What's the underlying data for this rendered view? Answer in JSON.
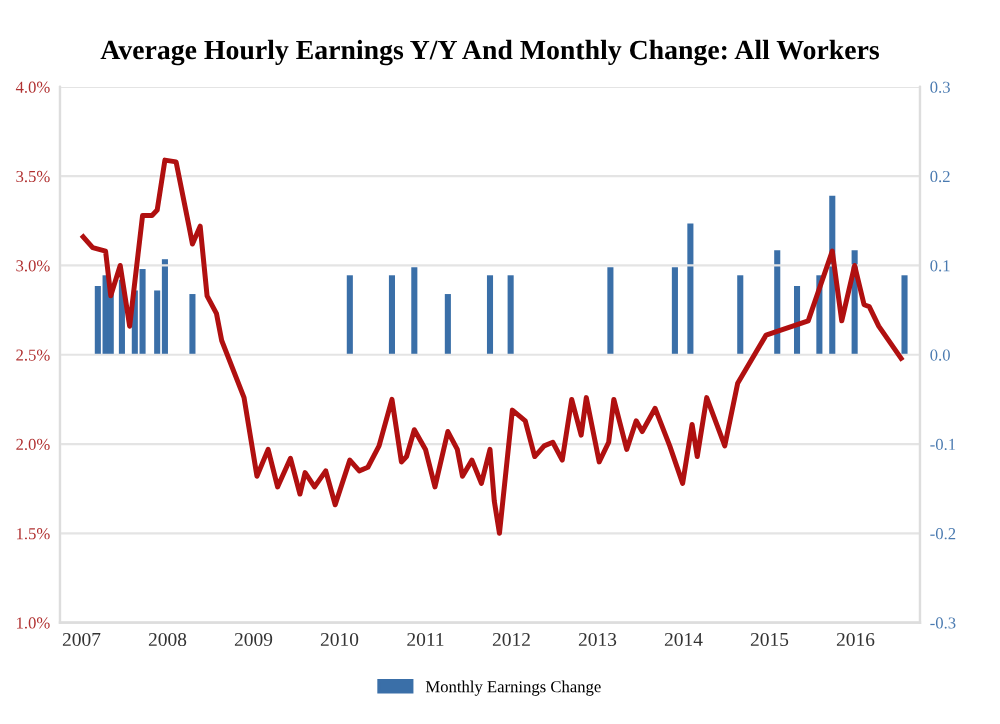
{
  "chart_data": {
    "type": "line",
    "title": "Average Hourly Earnings Y/Y And Monthly Change: All Workers",
    "xlim": [
      2006.75,
      2016.75
    ],
    "xticks": [
      2007,
      2008,
      2009,
      2010,
      2011,
      2012,
      2013,
      2014,
      2015,
      2016
    ],
    "ylim": [
      1.0,
      4.0
    ],
    "yticks": [
      {
        "value": 1.0,
        "label": "1.0%"
      },
      {
        "value": 1.5,
        "label": "1.5%"
      },
      {
        "value": 2.0,
        "label": "2.0%"
      },
      {
        "value": 2.5,
        "label": "2.5%"
      },
      {
        "value": 3.0,
        "label": "3.0%"
      },
      {
        "value": 3.5,
        "label": "3.5%"
      },
      {
        "value": 4.0,
        "label": "4.0%"
      }
    ],
    "y2lim": [
      -0.3,
      0.3
    ],
    "y2ticks": [
      -0.3,
      -0.2,
      -0.1,
      {
        "value": 0.0,
        "label": "0.0"
      },
      0.1,
      0.2,
      0.3
    ],
    "grid": "y",
    "legend": "bottom",
    "marker": "none",
    "line_style": "solid",
    "series": [
      {
        "name": "Monthly Earnings Change",
        "type": "bar",
        "axis": "y2",
        "color": "#3a6fa8",
        "x": [
          2007.19,
          2007.28,
          2007.34,
          2007.47,
          2007.62,
          2007.71,
          2007.88,
          2007.97,
          2008.29,
          2010.12,
          2010.61,
          2010.87,
          2011.26,
          2011.75,
          2011.99,
          2013.15,
          2013.9,
          2014.08,
          2014.66,
          2015.09,
          2015.32,
          2015.58,
          2015.73,
          2015.99,
          2016.57
        ],
        "values": [
          0.077,
          0.089,
          0.072,
          0.084,
          0.072,
          0.096,
          0.072,
          0.107,
          0.068,
          0.089,
          0.089,
          0.098,
          0.068,
          0.089,
          0.089,
          0.098,
          0.098,
          0.147,
          0.089,
          0.117,
          0.077,
          0.089,
          0.178,
          0.117,
          0.089
        ]
      },
      {
        "color": "#b01010",
        "x": [
          2007.02,
          2007.13,
          2007.28,
          2007.34,
          2007.45,
          2007.56,
          2007.71,
          2007.82,
          2007.88,
          2007.97,
          2008.1,
          2008.25,
          2008.29,
          2008.38,
          2008.46,
          2008.57,
          2008.63,
          2008.89,
          2009.04,
          2009.17,
          2009.28,
          2009.43,
          2009.54,
          2009.6,
          2009.71,
          2009.84,
          2009.95,
          2010.12,
          2010.23,
          2010.33,
          2010.46,
          2010.61,
          2010.72,
          2010.78,
          2010.87,
          2011.0,
          2011.11,
          2011.26,
          2011.37,
          2011.43,
          2011.54,
          2011.65,
          2011.75,
          2011.8,
          2011.86,
          2012.01,
          2012.16,
          2012.27,
          2012.38,
          2012.48,
          2012.59,
          2012.7,
          2012.81,
          2012.87,
          2013.02,
          2013.13,
          2013.19,
          2013.34,
          2013.45,
          2013.52,
          2013.67,
          2013.84,
          2013.99,
          2014.1,
          2014.16,
          2014.27,
          2014.48,
          2014.63,
          2014.96,
          2015.45,
          2015.73,
          2015.84,
          2015.99,
          2016.1,
          2016.16,
          2016.27,
          2016.53
        ],
        "values": [
          3.16,
          3.1,
          3.08,
          2.83,
          3.0,
          2.66,
          3.28,
          3.28,
          3.31,
          3.59,
          3.58,
          3.22,
          3.12,
          3.22,
          2.83,
          2.73,
          2.58,
          2.26,
          1.82,
          1.97,
          1.76,
          1.92,
          1.72,
          1.84,
          1.76,
          1.85,
          1.66,
          1.91,
          1.85,
          1.87,
          1.99,
          2.25,
          1.9,
          1.93,
          2.08,
          1.97,
          1.76,
          2.07,
          1.97,
          1.82,
          1.91,
          1.78,
          1.97,
          1.68,
          1.5,
          2.19,
          2.13,
          1.93,
          1.99,
          2.01,
          1.91,
          2.25,
          2.05,
          2.26,
          1.9,
          2.01,
          2.25,
          1.97,
          2.13,
          2.07,
          2.2,
          1.99,
          1.78,
          2.11,
          1.93,
          2.26,
          1.99,
          2.34,
          2.61,
          2.69,
          3.08,
          2.69,
          3.0,
          2.78,
          2.77,
          2.66,
          2.48
        ]
      }
    ]
  }
}
